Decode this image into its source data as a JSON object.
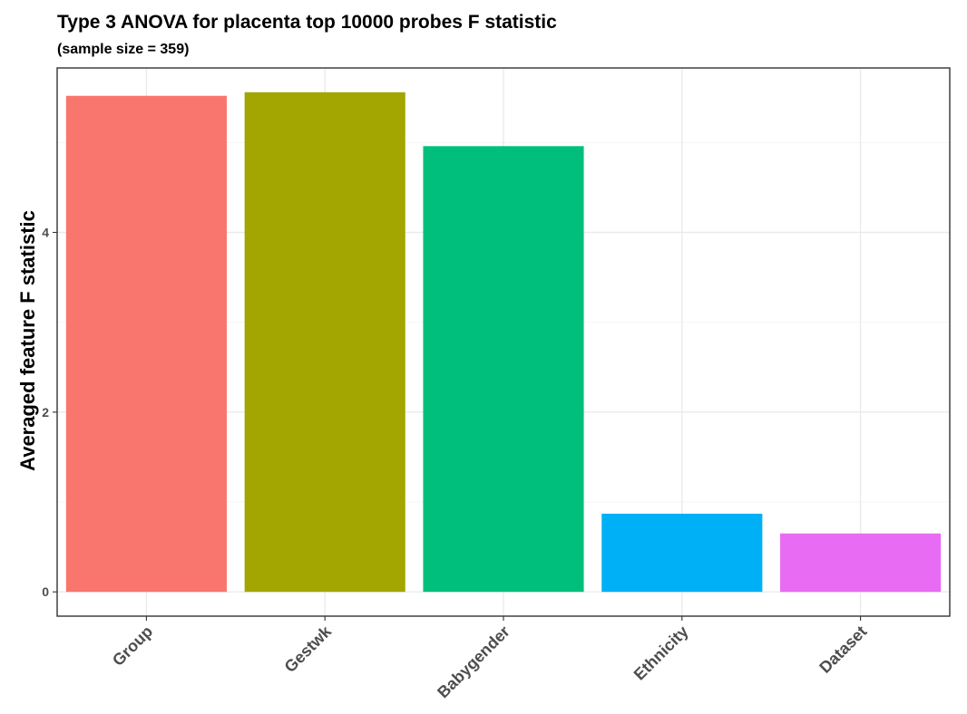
{
  "chart_data": {
    "type": "bar",
    "title": "Type 3 ANOVA for placenta top 10000 probes F statistic",
    "subtitle": "(sample size = 359)",
    "xlabel": "",
    "ylabel": "Averaged feature F statistic",
    "categories": [
      "Group",
      "Gestwk",
      "Babygender",
      "Ethnicity",
      "Dataset"
    ],
    "values": [
      5.52,
      5.56,
      4.96,
      0.87,
      0.65
    ],
    "colors": [
      "#F8766D",
      "#A3A500",
      "#00BF7D",
      "#00B0F6",
      "#E76BF3"
    ],
    "ylim": [
      -0.27,
      5.83
    ],
    "yticks": [
      0,
      2,
      4
    ],
    "grid": true,
    "legend": "none"
  }
}
